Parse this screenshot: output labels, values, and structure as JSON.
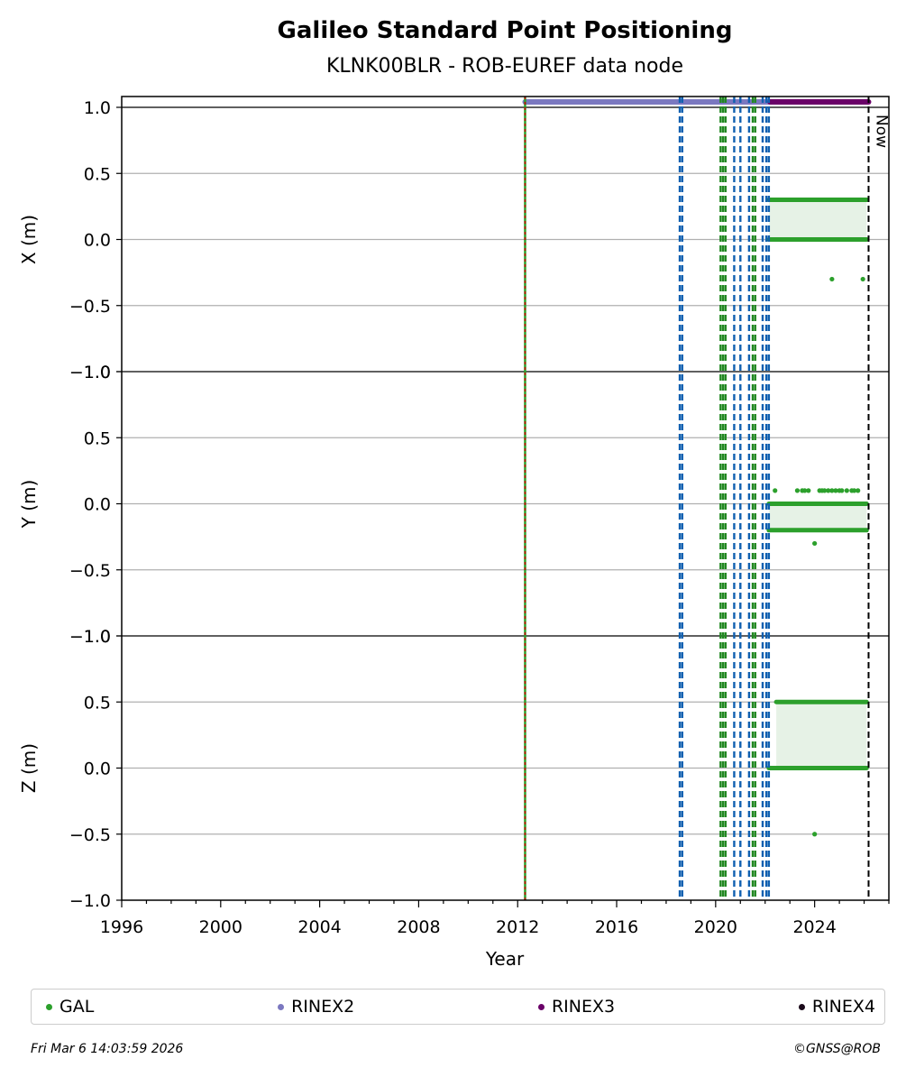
{
  "title": "Galileo Standard Point Positioning",
  "subtitle": "KLNK00BLR - ROB-EUREF data node",
  "footer_left": "Fri Mar  6 14:03:59 2026",
  "footer_right": "©GNSS@ROB",
  "legend": [
    {
      "label": "GAL",
      "color": "#2ca02c"
    },
    {
      "label": "RINEX2",
      "color": "#7b78c0"
    },
    {
      "label": "RINEX3",
      "color": "#6a0068"
    },
    {
      "label": "RINEX4",
      "color": "#1a0a1a"
    }
  ],
  "chart_data": {
    "type": "scatter",
    "xlabel": "Year",
    "xlim": [
      1996.0,
      2027.0
    ],
    "x_ticks": [
      1996,
      2000,
      2004,
      2008,
      2012,
      2016,
      2020,
      2024
    ],
    "now_label": "Now",
    "now_x": 2026.18,
    "colors": {
      "gal": "#2ca02c",
      "gal_fill": "#e6f2e6",
      "rinex2": "#7b78c0",
      "rinex3": "#6a0068",
      "equipment": "#1060b0",
      "antenna": "#228822",
      "station_start": "#cc0000"
    },
    "rinex_bars": [
      {
        "name": "RINEX2",
        "start": 2012.3,
        "end": 2022.2
      },
      {
        "name": "RINEX3",
        "start": 2022.2,
        "end": 2026.18
      }
    ],
    "event_lines": [
      {
        "x": 2012.3,
        "kind": "station_start"
      },
      {
        "x": 2018.55,
        "kind": "equipment"
      },
      {
        "x": 2018.65,
        "kind": "equipment"
      },
      {
        "x": 2020.2,
        "kind": "antenna"
      },
      {
        "x": 2020.3,
        "kind": "antenna"
      },
      {
        "x": 2020.4,
        "kind": "antenna"
      },
      {
        "x": 2020.75,
        "kind": "equipment"
      },
      {
        "x": 2021.0,
        "kind": "equipment"
      },
      {
        "x": 2021.35,
        "kind": "equipment"
      },
      {
        "x": 2021.5,
        "kind": "antenna"
      },
      {
        "x": 2021.6,
        "kind": "antenna"
      },
      {
        "x": 2021.9,
        "kind": "equipment"
      },
      {
        "x": 2022.05,
        "kind": "equipment"
      },
      {
        "x": 2022.15,
        "kind": "equipment"
      }
    ],
    "panels": [
      {
        "ylabel": "X (m)",
        "ylim": [
          -1.0,
          1.0
        ],
        "y_ticks": [
          "1.0",
          "0.5",
          "0.0",
          "−0.5",
          "−1.0"
        ],
        "gal_start": 2022.15,
        "gal_end": 2026.1,
        "levels": [
          0.0,
          0.3
        ],
        "outliers": [
          [
            2024.7,
            -0.3
          ],
          [
            2025.95,
            -0.3
          ]
        ]
      },
      {
        "ylabel": "Y (m)",
        "ylim": [
          -1.0,
          1.0
        ],
        "y_ticks": [
          "1.0",
          "0.5",
          "0.0",
          "−0.5",
          "−1.0"
        ],
        "gal_start": 2022.15,
        "gal_end": 2026.1,
        "levels": [
          0.0,
          -0.2
        ],
        "outliers": [
          [
            2024.0,
            -0.3
          ],
          [
            2022.4,
            0.1
          ],
          [
            2023.3,
            0.1
          ],
          [
            2023.5,
            0.1
          ],
          [
            2023.6,
            0.1
          ],
          [
            2023.75,
            0.1
          ],
          [
            2024.2,
            0.1
          ],
          [
            2024.3,
            0.1
          ],
          [
            2024.4,
            0.1
          ],
          [
            2024.55,
            0.1
          ],
          [
            2024.7,
            0.1
          ],
          [
            2024.85,
            0.1
          ],
          [
            2025.0,
            0.1
          ],
          [
            2025.1,
            0.1
          ],
          [
            2025.3,
            0.1
          ],
          [
            2025.5,
            0.1
          ],
          [
            2025.6,
            0.1
          ],
          [
            2025.75,
            0.1
          ]
        ]
      },
      {
        "ylabel": "Z (m)",
        "ylim": [
          -1.0,
          1.0
        ],
        "y_ticks": [
          "1.0",
          "0.5",
          "0.0",
          "−0.5",
          "−1.0"
        ],
        "gal_start": 2022.15,
        "gal_end": 2026.1,
        "levels": [
          0.0,
          0.5
        ],
        "level_start": [
          2022.15,
          2022.45
        ],
        "outliers": [
          [
            2024.0,
            -0.5
          ]
        ]
      }
    ]
  }
}
